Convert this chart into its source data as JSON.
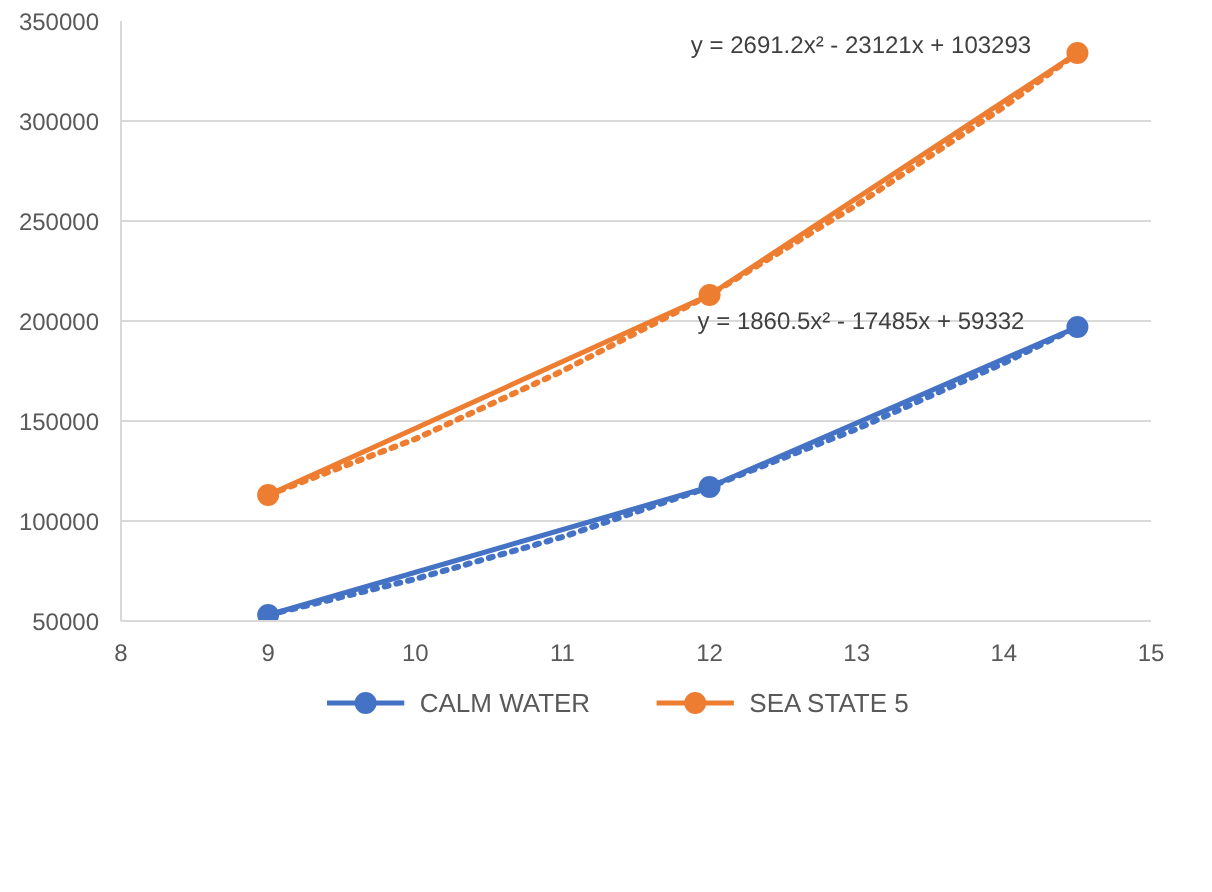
{
  "chart_data": {
    "type": "line",
    "xlim": [
      8,
      15
    ],
    "ylim": [
      50000,
      350000
    ],
    "xticks": [
      8,
      9,
      10,
      11,
      12,
      13,
      14,
      15
    ],
    "yticks": [
      50000,
      100000,
      150000,
      200000,
      250000,
      300000,
      350000
    ],
    "grid": "y",
    "legend": "bottom",
    "marker": "circle",
    "line_style": "solid",
    "series": [
      {
        "name": "CALM WATER",
        "color": "#4472c4",
        "x": [
          9,
          12,
          14.5
        ],
        "values": [
          53000,
          117000,
          197000
        ]
      },
      {
        "name": "SEA STATE 5",
        "color": "#ed7d31",
        "x": [
          9,
          12,
          14.5
        ],
        "values": [
          113000,
          213000,
          334000
        ]
      },
      {
        "type": "line",
        "color": "#4472c4",
        "marker": "none",
        "line_style": "dotted",
        "x": [
          9,
          10,
          11,
          12,
          13,
          14,
          14.5
        ],
        "values": [
          53000,
          71000,
          92000,
          117000,
          146000,
          179000,
          197000
        ]
      },
      {
        "type": "line",
        "color": "#ed7d31",
        "marker": "none",
        "line_style": "dotted",
        "x": [
          9,
          10,
          11,
          12,
          13,
          14,
          14.5
        ],
        "values": [
          113000,
          141000,
          175000,
          213000,
          258000,
          307000,
          334000
        ]
      }
    ],
    "annotations": [
      "y = 2691.2x² - 23121x + 103293",
      "y = 1860.5x² - 17485x + 59332"
    ]
  }
}
